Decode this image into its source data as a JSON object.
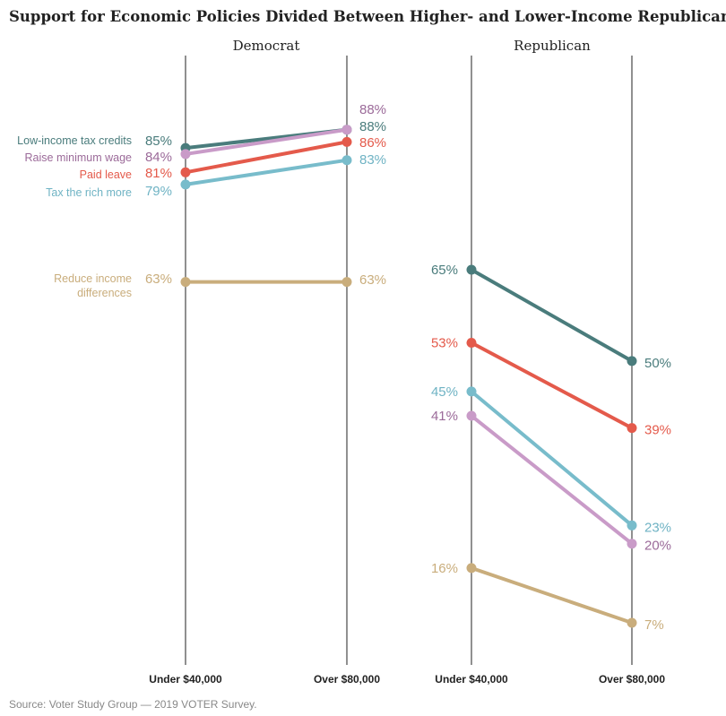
{
  "chart_data": {
    "type": "line",
    "title": "Support for Economic Policies Divided Between Higher- and Lower-Income Republicans",
    "categories": [
      "Under $40,000",
      "Over $80,000"
    ],
    "ylim": [
      0,
      100
    ],
    "source": "Source: Voter Study Group — 2019 VOTER Survey.",
    "series_labels": [
      {
        "name": "Low-income tax credits",
        "lines": [
          "Low-income tax credits"
        ]
      },
      {
        "name": "Raise minimum wage",
        "lines": [
          "Raise minimum wage"
        ]
      },
      {
        "name": "Paid leave",
        "lines": [
          "Paid leave"
        ]
      },
      {
        "name": "Tax the rich more",
        "lines": [
          "Tax the rich more"
        ]
      },
      {
        "name": "Reduce income differences",
        "lines": [
          "Reduce income",
          "differences"
        ]
      }
    ],
    "colors": {
      "Low-income tax credits": "#4a7c7c",
      "Raise minimum wage": "#c99bc8",
      "Paid leave": "#e45a4b",
      "Tax the rich more": "#78bccb",
      "Reduce income differences": "#c9ad7c"
    },
    "label_colors": {
      "Low-income tax credits": "#4a7c7c",
      "Raise minimum wage": "#9b6a99",
      "Paid leave": "#e45a4b",
      "Tax the rich more": "#6fb3c4",
      "Reduce income differences": "#c9ad7c"
    },
    "panels": [
      {
        "name": "Democrat",
        "series": [
          {
            "name": "Low-income tax credits",
            "values": [
              85,
              88
            ],
            "labels": [
              "85%",
              "88%"
            ]
          },
          {
            "name": "Raise minimum wage",
            "values": [
              84,
              88
            ],
            "labels": [
              "84%",
              "88%"
            ]
          },
          {
            "name": "Paid leave",
            "values": [
              81,
              86
            ],
            "labels": [
              "81%",
              "86%"
            ]
          },
          {
            "name": "Tax the rich more",
            "values": [
              79,
              83
            ],
            "labels": [
              "79%",
              "83%"
            ]
          },
          {
            "name": "Reduce income differences",
            "values": [
              63,
              63
            ],
            "labels": [
              "63%",
              "63%"
            ]
          }
        ]
      },
      {
        "name": "Republican",
        "series": [
          {
            "name": "Low-income tax credits",
            "values": [
              65,
              50
            ],
            "labels": [
              "65%",
              "50%"
            ]
          },
          {
            "name": "Paid leave",
            "values": [
              53,
              39
            ],
            "labels": [
              "53%",
              "39%"
            ]
          },
          {
            "name": "Tax the rich more",
            "values": [
              45,
              23
            ],
            "labels": [
              "45%",
              "23%"
            ]
          },
          {
            "name": "Raise minimum wage",
            "values": [
              41,
              20
            ],
            "labels": [
              "41%",
              "20%"
            ]
          },
          {
            "name": "Reduce income differences",
            "values": [
              16,
              7
            ],
            "labels": [
              "16%",
              "7%"
            ]
          }
        ]
      }
    ]
  }
}
